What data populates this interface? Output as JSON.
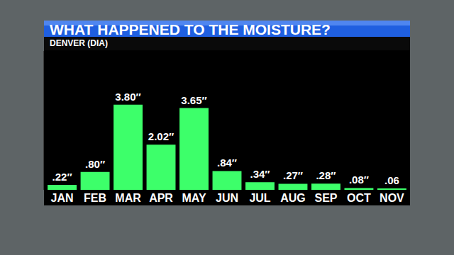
{
  "chart_data": {
    "type": "bar",
    "title": "WHAT HAPPENED TO THE MOISTURE?",
    "subtitle": "DENVER (DIA)",
    "categories": [
      "JAN",
      "FEB",
      "MAR",
      "APR",
      "MAY",
      "JUN",
      "JUL",
      "AUG",
      "SEP",
      "OCT",
      "NOV"
    ],
    "values": [
      0.22,
      0.8,
      3.8,
      2.02,
      3.65,
      0.84,
      0.34,
      0.27,
      0.28,
      0.08,
      0.06
    ],
    "value_labels": [
      ".22″",
      ".80″",
      "3.80″",
      "2.02″",
      "3.65″",
      ".84″",
      ".34″",
      ".27″",
      ".28″",
      ".08″",
      ".06"
    ],
    "color": "#3dff6a",
    "ylim": [
      0,
      6.2
    ],
    "yticks": [],
    "grid": false,
    "data_labels": true,
    "tick_labels": "x"
  }
}
